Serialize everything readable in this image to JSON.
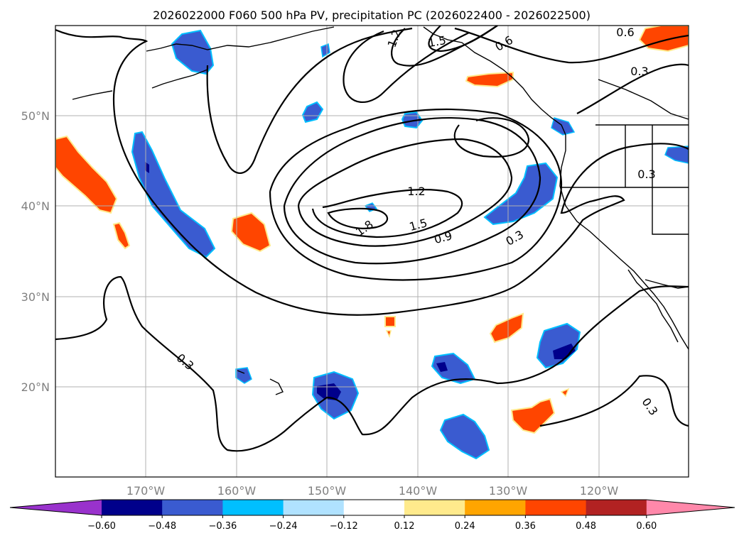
{
  "title": "2026022000 F060 500 hPa PV, precipitation PC (2026022400 - 2026022500)",
  "map": {
    "lon_ticks": [
      "170°W",
      "160°W",
      "150°W",
      "140°W",
      "130°W",
      "120°W"
    ],
    "lat_ticks": [
      "50°N",
      "40°N",
      "30°N",
      "20°N"
    ],
    "pv_contour_labels": [
      "1.2",
      "1.5",
      "0.6",
      "0.6",
      "0.3",
      "0.3",
      "1.2",
      "1.5",
      "1.8",
      "0.9",
      "0.3",
      "0.3",
      "0.3"
    ]
  },
  "colorbar": {
    "ticks": [
      "−0.60",
      "−0.48",
      "−0.36",
      "−0.24",
      "−0.12",
      "0.12",
      "0.24",
      "0.36",
      "0.48",
      "0.60"
    ],
    "colors": [
      "#9932cc",
      "#00008b",
      "#3a5bd0",
      "#00bfff",
      "#b0e2ff",
      "#ffffff",
      "#ffea8c",
      "#ffa500",
      "#ff4500",
      "#b22222",
      "#ff88aa"
    ]
  },
  "colors": {
    "neg_strong": "#00008b",
    "neg_mid": "#3a5bd0",
    "neg_light": "#00bfff",
    "pos_light": "#ffea8c",
    "pos_mid": "#ffa500",
    "pos_strong": "#ff4500"
  }
}
